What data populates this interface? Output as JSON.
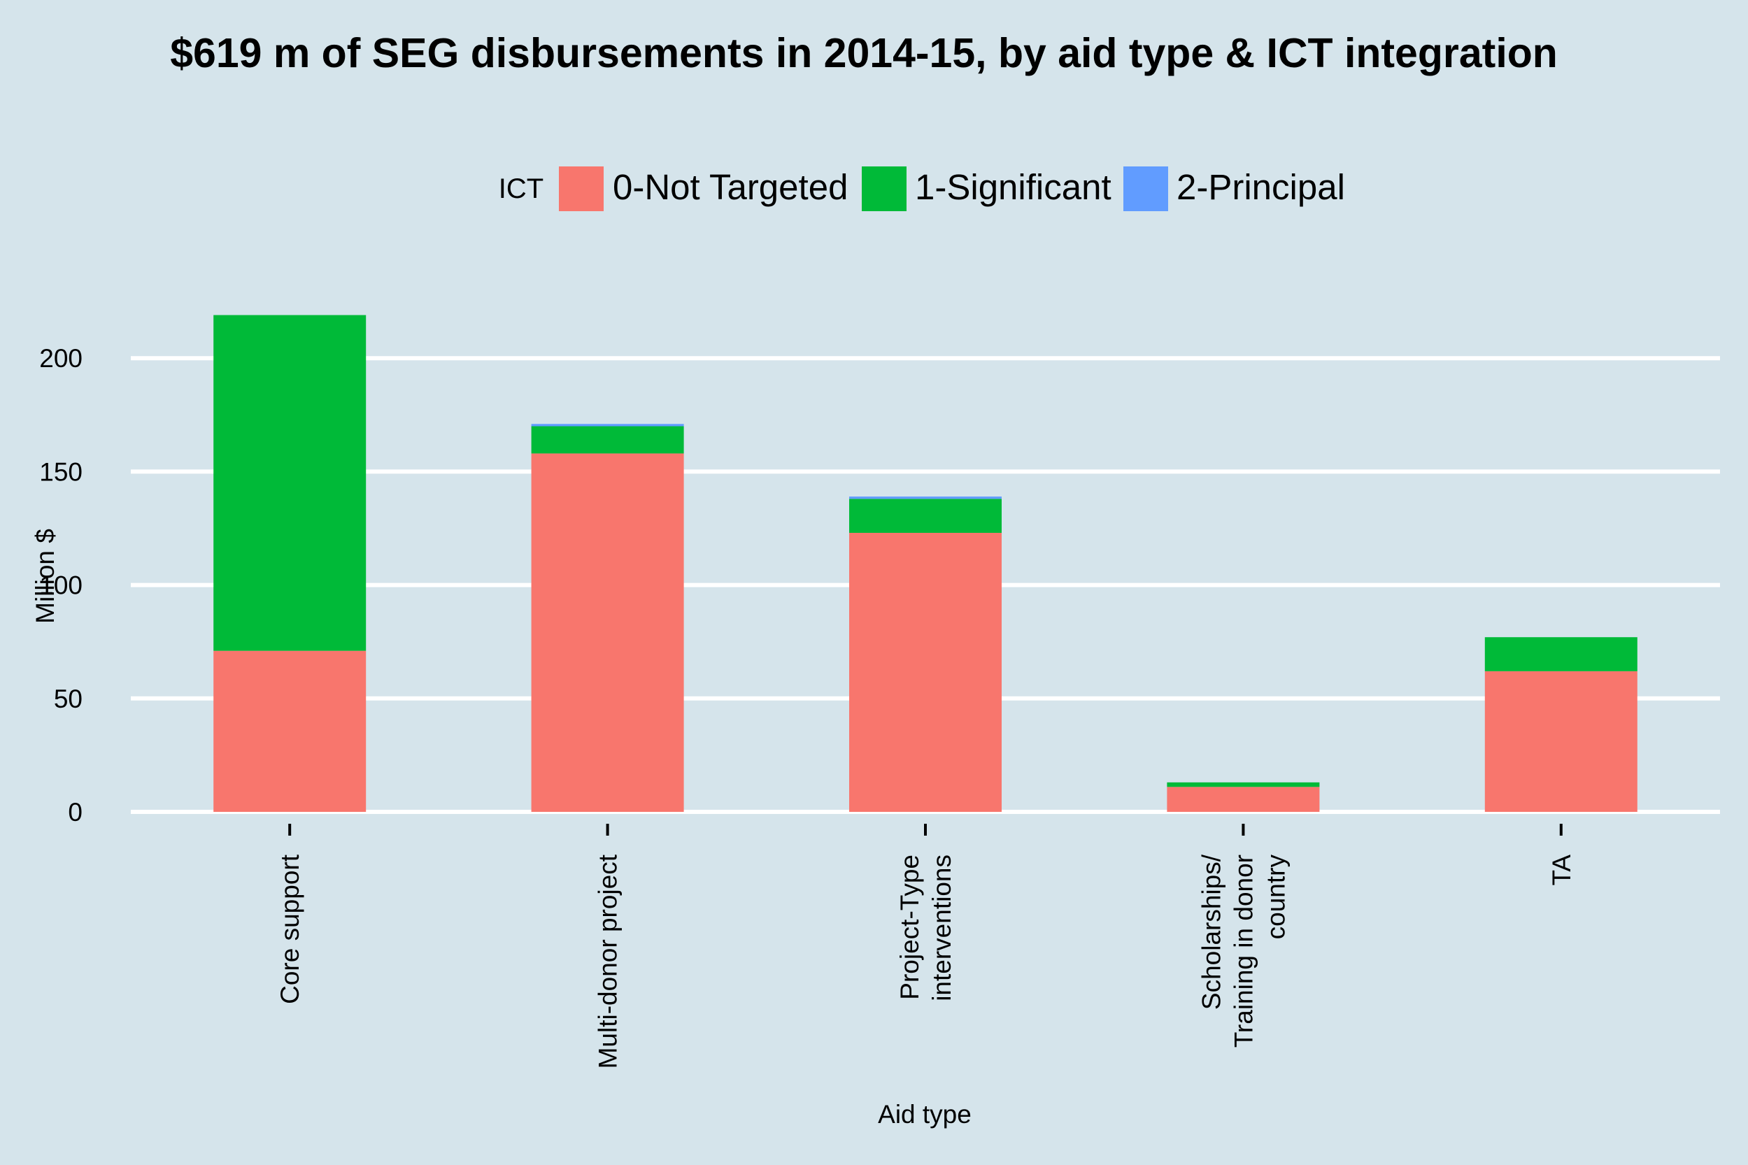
{
  "chart_data": {
    "type": "bar",
    "stacked": true,
    "title": "$619 m of SEG disbursements in 2014-15, by aid type & ICT integration",
    "xlabel": "Aid type",
    "ylabel": "Million $",
    "ylim": [
      0,
      225
    ],
    "yticks": [
      0,
      50,
      100,
      150,
      200
    ],
    "grid": "horizontal",
    "legend": {
      "title": "ICT",
      "placement": "top"
    },
    "categories": [
      "Core support",
      "Multi-donor project",
      "Project-Type interventions",
      "Scholarships/ Training in donor country",
      "TA"
    ],
    "category_lines": [
      [
        "Core support"
      ],
      [
        "Multi-donor project"
      ],
      [
        "Project-Type",
        "interventions"
      ],
      [
        "Scholarships/",
        "Training in donor",
        "country"
      ],
      [
        "TA"
      ]
    ],
    "series": [
      {
        "name": "0-Not Targeted",
        "color": "#f8766d",
        "values": [
          71,
          158,
          123,
          11,
          62
        ]
      },
      {
        "name": "1-Significant",
        "color": "#00ba38",
        "values": [
          148,
          12,
          15,
          2,
          15
        ]
      },
      {
        "name": "2-Principal",
        "color": "#619cff",
        "values": [
          0,
          1,
          1,
          0,
          0
        ]
      }
    ]
  }
}
